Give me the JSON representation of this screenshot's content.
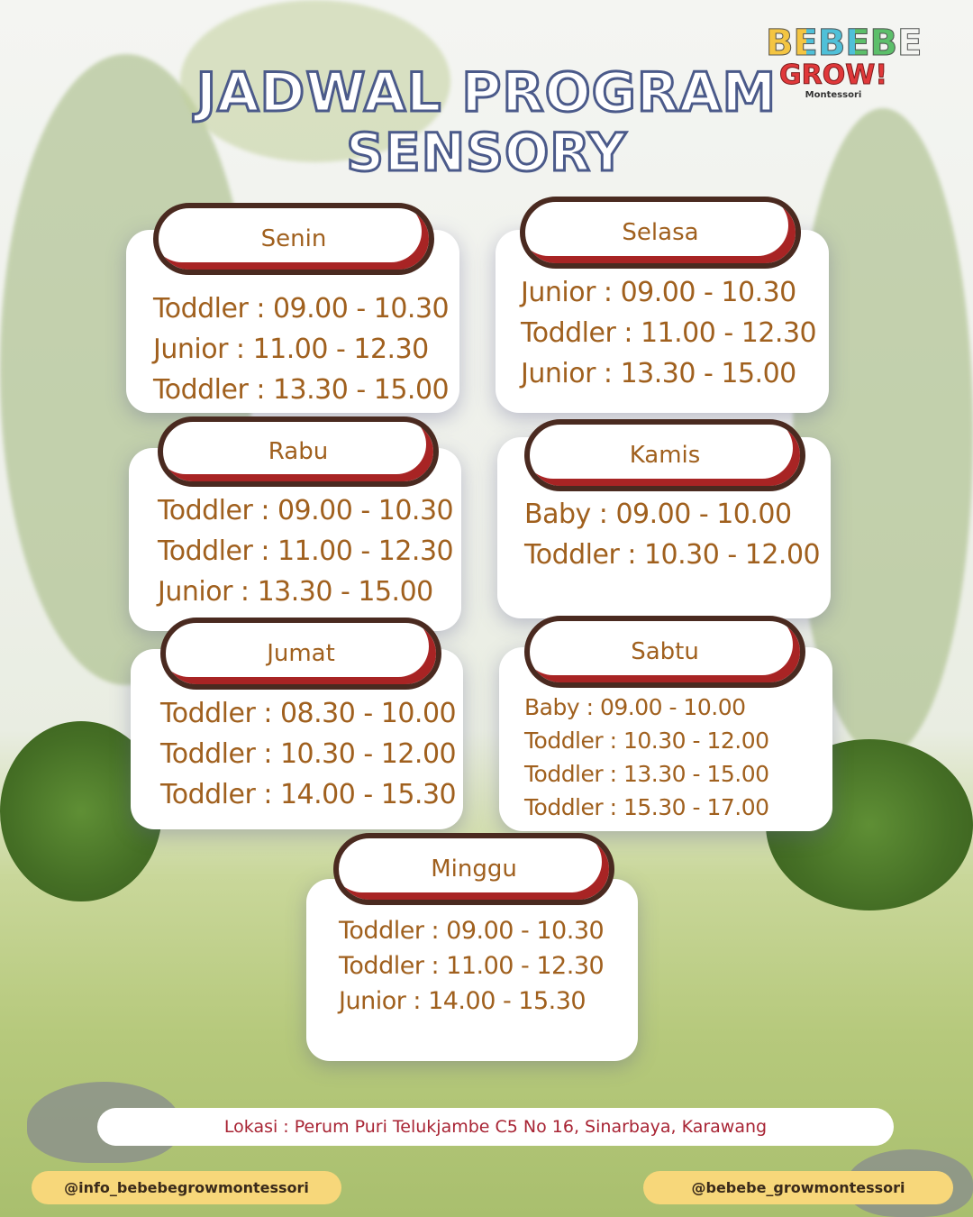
{
  "title": {
    "line1": "JADWAL PROGRAM",
    "line2": "SENSORY"
  },
  "logo": {
    "line1": "BEBEBE",
    "line2": "GROW!",
    "line3": "Montessori"
  },
  "days": [
    {
      "day": "Senin",
      "sessions": [
        "Toddler : 09.00 - 10.30",
        "Junior : 11.00 - 12.30",
        "Toddler : 13.30 - 15.00"
      ]
    },
    {
      "day": "Selasa",
      "sessions": [
        "Junior : 09.00 - 10.30",
        "Toddler : 11.00 - 12.30",
        "Junior : 13.30 - 15.00"
      ]
    },
    {
      "day": "Rabu",
      "sessions": [
        "Toddler : 09.00 - 10.30",
        "Toddler : 11.00 - 12.30",
        "Junior : 13.30 - 15.00"
      ]
    },
    {
      "day": "Kamis",
      "sessions": [
        "Baby : 09.00 - 10.00",
        "Toddler : 10.30 - 12.00"
      ]
    },
    {
      "day": "Jumat",
      "sessions": [
        "Toddler : 08.30 - 10.00",
        "Toddler : 10.30 - 12.00",
        "Toddler : 14.00 - 15.30"
      ]
    },
    {
      "day": "Sabtu",
      "sessions": [
        "Baby : 09.00 - 10.00",
        "Toddler : 10.30 - 12.00",
        "Toddler : 13.30 - 15.00",
        "Toddler : 15.30 - 17.00"
      ]
    },
    {
      "day": "Minggu",
      "sessions": [
        "Toddler : 09.00 - 10.30",
        "Toddler : 11.00 - 12.30",
        "Junior : 14.00 - 15.30"
      ]
    }
  ],
  "location": "Lokasi : Perum Puri Telukjambe C5 No 16, Sinarbaya, Karawang",
  "social": {
    "left": "@info_bebebegrowmontessori",
    "right": "@bebebe_growmontessori"
  },
  "colors": {
    "text": "#a0601e",
    "pill_border": "#4a2a20",
    "pill_accent": "#a82424",
    "title_stroke": "#4b5a8a",
    "social_bg": "#f7d77a"
  }
}
